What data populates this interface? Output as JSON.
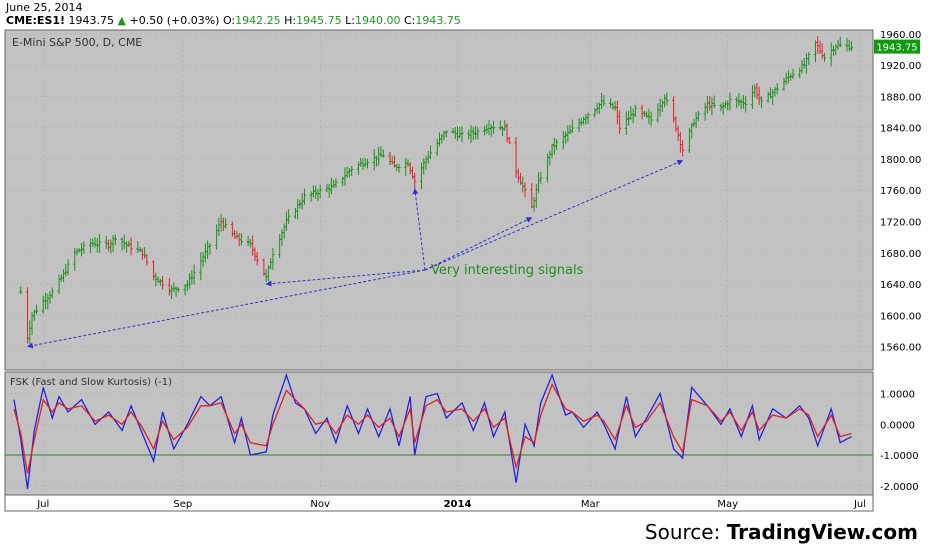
{
  "header": {
    "date": "June 25, 2014",
    "symbol": "CME:ES1!",
    "last": "1943.75",
    "change": "+0.50 (+0.03%)",
    "open_label": "O:",
    "open": "1942.25",
    "high_label": "H:",
    "high": "1945.75",
    "low_label": "L:",
    "low": "1940.00",
    "close_label": "C:",
    "close": "1943.75"
  },
  "source": {
    "prefix": "Source: ",
    "brand": "TradingView.com"
  },
  "colors": {
    "panel_bg": "#c2c2c2",
    "bar_up": "#1f8f1f",
    "bar_down": "#e8202a",
    "fast_line": "#2222dd",
    "slow_line": "#dd2222",
    "zero_line": "#1f8f1f",
    "grid": "#aaaaaa",
    "annotation_text": "#1f8f1f",
    "annotation_arrow": "#3333cc",
    "price_badge": "#119911"
  },
  "chart_data": [
    {
      "type": "ohlc",
      "title": "E-Mini S&P 500, D, CME",
      "ylim": [
        1530,
        1965
      ],
      "yticks": [
        "1960.00",
        "1920.00",
        "1880.00",
        "1840.00",
        "1800.00",
        "1760.00",
        "1720.00",
        "1680.00",
        "1640.00",
        "1600.00",
        "1560.00"
      ],
      "xticks": [
        "Jul",
        "Sep",
        "Nov",
        "2014",
        "Mar",
        "May",
        "Jul"
      ],
      "last_price_label": "1943.75",
      "last_price": 1943.75,
      "close_path": [
        [
          "2013-06-21",
          1630
        ],
        [
          "2013-06-24",
          1572
        ],
        [
          "2013-06-26",
          1600
        ],
        [
          "2013-07-01",
          1618
        ],
        [
          "2013-07-05",
          1630
        ],
        [
          "2013-07-10",
          1652
        ],
        [
          "2013-07-15",
          1680
        ],
        [
          "2013-07-22",
          1692
        ],
        [
          "2013-07-30",
          1690
        ],
        [
          "2013-08-02",
          1700
        ],
        [
          "2013-08-07",
          1690
        ],
        [
          "2013-08-14",
          1680
        ],
        [
          "2013-08-19",
          1650
        ],
        [
          "2013-08-27",
          1632
        ],
        [
          "2013-09-03",
          1640
        ],
        [
          "2013-09-09",
          1670
        ],
        [
          "2013-09-13",
          1690
        ],
        [
          "2013-09-18",
          1720
        ],
        [
          "2013-09-24",
          1700
        ],
        [
          "2013-10-01",
          1690
        ],
        [
          "2013-10-08",
          1648
        ],
        [
          "2013-10-11",
          1680
        ],
        [
          "2013-10-17",
          1720
        ],
        [
          "2013-10-25",
          1752
        ],
        [
          "2013-10-31",
          1758
        ],
        [
          "2013-11-07",
          1765
        ],
        [
          "2013-11-15",
          1788
        ],
        [
          "2013-11-22",
          1798
        ],
        [
          "2013-11-29",
          1805
        ],
        [
          "2013-12-04",
          1790
        ],
        [
          "2013-12-10",
          1795
        ],
        [
          "2013-12-13",
          1772
        ],
        [
          "2013-12-18",
          1800
        ],
        [
          "2013-12-27",
          1836
        ],
        [
          "2014-01-03",
          1830
        ],
        [
          "2014-01-10",
          1835
        ],
        [
          "2014-01-15",
          1842
        ],
        [
          "2014-01-22",
          1840
        ],
        [
          "2014-01-27",
          1785
        ],
        [
          "2014-02-03",
          1738
        ],
        [
          "2014-02-06",
          1770
        ],
        [
          "2014-02-12",
          1815
        ],
        [
          "2014-02-20",
          1835
        ],
        [
          "2014-02-27",
          1855
        ],
        [
          "2014-03-06",
          1872
        ],
        [
          "2014-03-12",
          1865
        ],
        [
          "2014-03-14",
          1840
        ],
        [
          "2014-03-21",
          1862
        ],
        [
          "2014-03-28",
          1850
        ],
        [
          "2014-04-03",
          1880
        ],
        [
          "2014-04-07",
          1850
        ],
        [
          "2014-04-11",
          1812
        ],
        [
          "2014-04-16",
          1848
        ],
        [
          "2014-04-22",
          1870
        ],
        [
          "2014-04-28",
          1865
        ],
        [
          "2014-05-02",
          1875
        ],
        [
          "2014-05-09",
          1872
        ],
        [
          "2014-05-13",
          1890
        ],
        [
          "2014-05-16",
          1872
        ],
        [
          "2014-05-21",
          1885
        ],
        [
          "2014-05-28",
          1905
        ],
        [
          "2014-06-04",
          1920
        ],
        [
          "2014-06-09",
          1948
        ],
        [
          "2014-06-13",
          1930
        ],
        [
          "2014-06-18",
          1945
        ],
        [
          "2014-06-25",
          1943.75
        ]
      ],
      "annotation": {
        "text": "Very interesting signals",
        "arrow_targets": [
          [
            "2013-06-24",
            1560
          ],
          [
            "2013-10-08",
            1640
          ],
          [
            "2013-12-13",
            1762
          ],
          [
            "2014-02-03",
            1725
          ],
          [
            "2014-04-11",
            1798
          ]
        ]
      }
    },
    {
      "type": "line",
      "title": "FSK (Fast and Slow Kurtosis) (-1)",
      "ylim": [
        -2.3,
        1.7
      ],
      "yticks": [
        "1.0000",
        "0.0000",
        "-1.0000",
        "-2.0000"
      ],
      "reference_line": -1.0,
      "series": [
        {
          "role": "fast",
          "values": [
            [
              "2013-06-18",
              0.8
            ],
            [
              "2013-06-21",
              -0.5
            ],
            [
              "2013-06-24",
              -2.1
            ],
            [
              "2013-06-27",
              -0.2
            ],
            [
              "2013-07-01",
              1.2
            ],
            [
              "2013-07-05",
              0.2
            ],
            [
              "2013-07-08",
              0.9
            ],
            [
              "2013-07-12",
              0.4
            ],
            [
              "2013-07-18",
              0.8
            ],
            [
              "2013-07-24",
              0.0
            ],
            [
              "2013-07-30",
              0.4
            ],
            [
              "2013-08-05",
              -0.2
            ],
            [
              "2013-08-09",
              0.6
            ],
            [
              "2013-08-14",
              -0.3
            ],
            [
              "2013-08-19",
              -1.2
            ],
            [
              "2013-08-23",
              0.4
            ],
            [
              "2013-08-28",
              -0.8
            ],
            [
              "2013-09-03",
              0.0
            ],
            [
              "2013-09-09",
              0.9
            ],
            [
              "2013-09-13",
              0.6
            ],
            [
              "2013-09-18",
              0.9
            ],
            [
              "2013-09-24",
              -0.6
            ],
            [
              "2013-09-27",
              0.2
            ],
            [
              "2013-10-01",
              -1.0
            ],
            [
              "2013-10-08",
              -0.9
            ],
            [
              "2013-10-11",
              0.3
            ],
            [
              "2013-10-17",
              1.6
            ],
            [
              "2013-10-21",
              0.7
            ],
            [
              "2013-10-25",
              0.5
            ],
            [
              "2013-10-30",
              -0.3
            ],
            [
              "2013-11-04",
              0.2
            ],
            [
              "2013-11-08",
              -0.6
            ],
            [
              "2013-11-13",
              0.6
            ],
            [
              "2013-11-18",
              -0.3
            ],
            [
              "2013-11-22",
              0.5
            ],
            [
              "2013-11-27",
              -0.4
            ],
            [
              "2013-12-02",
              0.5
            ],
            [
              "2013-12-06",
              -0.7
            ],
            [
              "2013-12-11",
              0.9
            ],
            [
              "2013-12-13",
              -1.0
            ],
            [
              "2013-12-18",
              0.9
            ],
            [
              "2013-12-23",
              1.0
            ],
            [
              "2013-12-27",
              0.2
            ],
            [
              "2014-01-03",
              0.7
            ],
            [
              "2014-01-08",
              -0.2
            ],
            [
              "2014-01-13",
              0.7
            ],
            [
              "2014-01-17",
              -0.4
            ],
            [
              "2014-01-22",
              0.4
            ],
            [
              "2014-01-27",
              -1.9
            ],
            [
              "2014-01-31",
              0.0
            ],
            [
              "2014-02-04",
              -0.7
            ],
            [
              "2014-02-07",
              0.7
            ],
            [
              "2014-02-12",
              1.6
            ],
            [
              "2014-02-18",
              0.3
            ],
            [
              "2014-02-21",
              0.4
            ],
            [
              "2014-02-26",
              -0.1
            ],
            [
              "2014-03-04",
              0.4
            ],
            [
              "2014-03-07",
              0.0
            ],
            [
              "2014-03-12",
              -0.8
            ],
            [
              "2014-03-17",
              0.9
            ],
            [
              "2014-03-21",
              -0.4
            ],
            [
              "2014-03-26",
              0.2
            ],
            [
              "2014-04-01",
              1.0
            ],
            [
              "2014-04-07",
              -0.8
            ],
            [
              "2014-04-11",
              -1.1
            ],
            [
              "2014-04-15",
              1.2
            ],
            [
              "2014-04-22",
              0.6
            ],
            [
              "2014-04-28",
              0.0
            ],
            [
              "2014-05-02",
              0.5
            ],
            [
              "2014-05-07",
              -0.4
            ],
            [
              "2014-05-12",
              0.6
            ],
            [
              "2014-05-15",
              -0.5
            ],
            [
              "2014-05-21",
              0.5
            ],
            [
              "2014-05-27",
              0.2
            ],
            [
              "2014-06-02",
              0.6
            ],
            [
              "2014-06-06",
              0.2
            ],
            [
              "2014-06-10",
              -0.7
            ],
            [
              "2014-06-16",
              0.5
            ],
            [
              "2014-06-20",
              -0.6
            ],
            [
              "2014-06-25",
              -0.4
            ]
          ]
        },
        {
          "role": "slow",
          "values": [
            [
              "2013-06-18",
              0.5
            ],
            [
              "2013-06-21",
              -0.3
            ],
            [
              "2013-06-24",
              -1.6
            ],
            [
              "2013-06-27",
              -0.5
            ],
            [
              "2013-07-01",
              0.8
            ],
            [
              "2013-07-05",
              0.4
            ],
            [
              "2013-07-08",
              0.7
            ],
            [
              "2013-07-12",
              0.5
            ],
            [
              "2013-07-18",
              0.6
            ],
            [
              "2013-07-24",
              0.1
            ],
            [
              "2013-07-30",
              0.3
            ],
            [
              "2013-08-05",
              0.0
            ],
            [
              "2013-08-09",
              0.4
            ],
            [
              "2013-08-14",
              -0.1
            ],
            [
              "2013-08-19",
              -0.8
            ],
            [
              "2013-08-23",
              0.1
            ],
            [
              "2013-08-28",
              -0.5
            ],
            [
              "2013-09-03",
              -0.1
            ],
            [
              "2013-09-09",
              0.6
            ],
            [
              "2013-09-13",
              0.6
            ],
            [
              "2013-09-18",
              0.7
            ],
            [
              "2013-09-24",
              -0.3
            ],
            [
              "2013-09-27",
              0.0
            ],
            [
              "2013-10-01",
              -0.6
            ],
            [
              "2013-10-08",
              -0.7
            ],
            [
              "2013-10-11",
              0.0
            ],
            [
              "2013-10-17",
              1.1
            ],
            [
              "2013-10-21",
              0.8
            ],
            [
              "2013-10-25",
              0.5
            ],
            [
              "2013-10-30",
              0.0
            ],
            [
              "2013-11-04",
              0.1
            ],
            [
              "2013-11-08",
              -0.3
            ],
            [
              "2013-11-13",
              0.3
            ],
            [
              "2013-11-18",
              0.0
            ],
            [
              "2013-11-22",
              0.3
            ],
            [
              "2013-11-27",
              -0.1
            ],
            [
              "2013-12-02",
              0.2
            ],
            [
              "2013-12-06",
              -0.4
            ],
            [
              "2013-12-11",
              0.5
            ],
            [
              "2013-12-13",
              -0.6
            ],
            [
              "2013-12-18",
              0.6
            ],
            [
              "2013-12-23",
              0.8
            ],
            [
              "2013-12-27",
              0.4
            ],
            [
              "2014-01-03",
              0.5
            ],
            [
              "2014-01-08",
              0.1
            ],
            [
              "2014-01-13",
              0.5
            ],
            [
              "2014-01-17",
              -0.1
            ],
            [
              "2014-01-22",
              0.2
            ],
            [
              "2014-01-27",
              -1.4
            ],
            [
              "2014-01-31",
              -0.4
            ],
            [
              "2014-02-04",
              -0.6
            ],
            [
              "2014-02-07",
              0.3
            ],
            [
              "2014-02-12",
              1.3
            ],
            [
              "2014-02-18",
              0.5
            ],
            [
              "2014-02-21",
              0.4
            ],
            [
              "2014-02-26",
              0.1
            ],
            [
              "2014-03-04",
              0.3
            ],
            [
              "2014-03-07",
              0.1
            ],
            [
              "2014-03-12",
              -0.5
            ],
            [
              "2014-03-17",
              0.6
            ],
            [
              "2014-03-21",
              -0.1
            ],
            [
              "2014-03-26",
              0.1
            ],
            [
              "2014-04-01",
              0.7
            ],
            [
              "2014-04-07",
              -0.4
            ],
            [
              "2014-04-11",
              -0.9
            ],
            [
              "2014-04-15",
              0.8
            ],
            [
              "2014-04-22",
              0.6
            ],
            [
              "2014-04-28",
              0.1
            ],
            [
              "2014-05-02",
              0.4
            ],
            [
              "2014-05-07",
              -0.2
            ],
            [
              "2014-05-12",
              0.4
            ],
            [
              "2014-05-15",
              -0.2
            ],
            [
              "2014-05-21",
              0.3
            ],
            [
              "2014-05-27",
              0.2
            ],
            [
              "2014-06-02",
              0.5
            ],
            [
              "2014-06-06",
              0.3
            ],
            [
              "2014-06-10",
              -0.4
            ],
            [
              "2014-06-16",
              0.3
            ],
            [
              "2014-06-20",
              -0.4
            ],
            [
              "2014-06-25",
              -0.3
            ]
          ]
        }
      ]
    }
  ]
}
